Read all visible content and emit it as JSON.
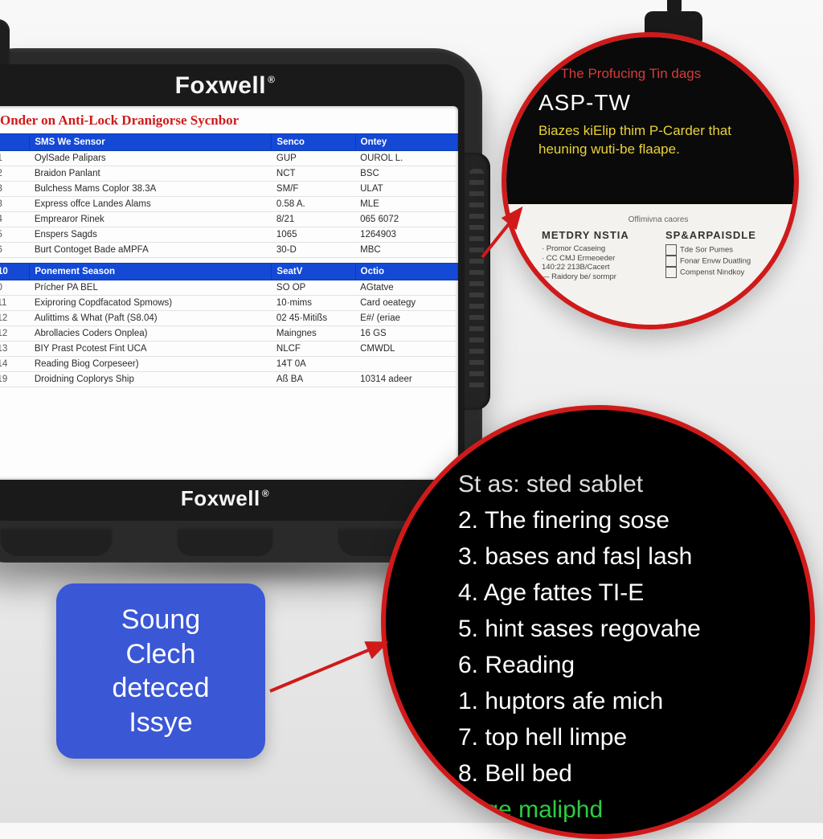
{
  "colors": {
    "accent_red": "#d01a1a",
    "accent_blue": "#3a57d6",
    "header_blue": "#1449d6",
    "yellow": "#e9d23a",
    "green": "#2ecc40",
    "device_body": "#2a2a2a",
    "screen_bg": "#fdfdfd",
    "page_bg_top": "#f8f8f8",
    "page_bg_bottom": "#e0e0e0"
  },
  "brand": {
    "name": "Foxwell",
    "registered": "®"
  },
  "screen": {
    "title": "Onder on Anti-Lock Dranigorse Sycnbor",
    "table1": {
      "headers": [
        "",
        "SMS We Sensor",
        "Senco",
        "Ontey"
      ],
      "rows": [
        [
          "1",
          "OylSade Palipars",
          "GUP",
          "OUROL L."
        ],
        [
          "2",
          "Braidon Panlant",
          "NCT",
          "BSC"
        ],
        [
          "3",
          "Bulchess Mams Coplor 38.3A",
          "SM/F",
          "ULAT"
        ],
        [
          "3",
          "Express offce Landes Alams",
          "0.58 A.",
          "MLE"
        ],
        [
          "4",
          "Emprearor Rinek",
          "8/21",
          "065 6072"
        ],
        [
          "5",
          "Enspers Sagds",
          "1065",
          "1264903"
        ],
        [
          "6",
          "Burt Contoget Bade aMPFA",
          "30-D",
          "MBC"
        ]
      ]
    },
    "table2": {
      "headers": [
        "10",
        "Ponement Season",
        "SeatV",
        "Octio"
      ],
      "rows": [
        [
          "0",
          "Prícher PA BEL",
          "SO OP",
          "AGtatve"
        ],
        [
          "11",
          "Exiproring Copdfacatod Spmows)",
          "10·mims",
          "Card oeategy"
        ],
        [
          "12",
          "Aulittims & What (Paft (S8.04)",
          "02 45·Mitißs",
          "E#/ (eriae"
        ],
        [
          "12",
          "Abrollacies Coders Onplea)",
          "Maingnes",
          "16 GS"
        ],
        [
          "13",
          "BIY Prast Pcotest Fint UCA",
          "NLCF",
          "CMWDL"
        ],
        [
          "14",
          "Reading Biog Corpeseer)",
          "14T 0A",
          ""
        ],
        [
          "19",
          "Droidning Coplorys Ship",
          "Aß BA",
          "10314 adeer"
        ]
      ]
    }
  },
  "callout_top": {
    "line1": "The Profucing Tin dags",
    "asp": "ASP-TW",
    "yellow": "Biazes kiElip thim P-Carder that heuning wuti-be flaape.",
    "smallcap": "Offimivna caores",
    "col_left": {
      "title": "METDRY NSTIA",
      "lines": [
        "· Promor Ccaseing",
        "· CC CMJ Ermeoeder",
        "140:22 213B/Cacert",
        "— Raidory be/ sormpr"
      ]
    },
    "col_right": {
      "title": "SP&ARPAISDLE",
      "lines": [
        "Tde Sor Pumes",
        "Fonar Envw Duatling",
        "Compenst Nindkoy"
      ]
    }
  },
  "callout_bot": {
    "partial_top": "St as: sted sablet",
    "items": [
      "2. The finering sose",
      "3. bases and fas| lash",
      "4. Age fattes TI-E",
      "5. hint sases regovahe",
      "6. Reading",
      "1. huptors afe mich",
      "7. top hell limpe",
      "8. Bell bed"
    ],
    "partial_bottom": "boge maliphd"
  },
  "bluebox": {
    "lines": [
      "Soung",
      "Clech",
      "deteced",
      "Issye"
    ]
  },
  "arrows": {
    "stroke": "#d01a1a",
    "width": 4
  }
}
